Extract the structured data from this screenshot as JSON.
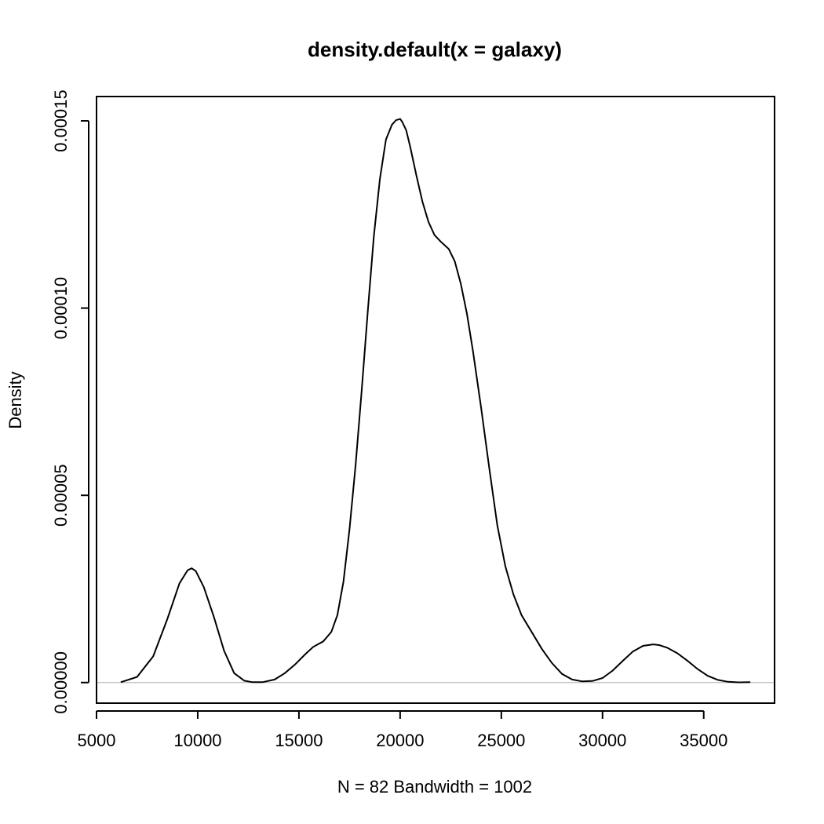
{
  "chart_data": {
    "type": "line",
    "title": "density.default(x = galaxy)",
    "xlabel": "N = 82   Bandwidth = 1002",
    "ylabel": "Density",
    "xlim": [
      5000,
      38500
    ],
    "ylim": [
      -5.5e-06,
      0.0001565
    ],
    "x_ticks": [
      5000,
      10000,
      15000,
      20000,
      25000,
      30000,
      35000
    ],
    "x_tick_labels": [
      "5000",
      "10000",
      "15000",
      "20000",
      "25000",
      "30000",
      "35000"
    ],
    "y_ticks": [
      0,
      5e-05,
      0.0001,
      0.00015
    ],
    "y_tick_labels": [
      "0.00000",
      "0.00005",
      "0.00010",
      "0.00015"
    ],
    "baseline": 0,
    "grid": false,
    "legend": "none",
    "series": [
      {
        "x": [
          6200,
          7000,
          7800,
          8500,
          9100,
          9500,
          9700,
          9900,
          10300,
          10800,
          11300,
          11800,
          12300,
          12700,
          13200,
          13800,
          14300,
          14800,
          15300,
          15700,
          16200,
          16600,
          16900,
          17200,
          17500,
          17800,
          18100,
          18400,
          18700,
          19000,
          19300,
          19600,
          19800,
          20000,
          20100,
          20300,
          20500,
          20800,
          21100,
          21400,
          21700,
          22000,
          22400,
          22700,
          23000,
          23300,
          23600,
          24000,
          24400,
          24800,
          25200,
          25600,
          26000,
          26500,
          27000,
          27500,
          28000,
          28500,
          29000,
          29500,
          30000,
          30500,
          31000,
          31500,
          32000,
          32500,
          32800,
          33200,
          33700,
          34200,
          34700,
          35200,
          35700,
          36200,
          36700,
          37300
        ],
        "y": [
          1e-07,
          1.5e-06,
          7e-06,
          1.7e-05,
          2.65e-05,
          3e-05,
          3.05e-05,
          2.98e-05,
          2.55e-05,
          1.75e-05,
          8.5e-06,
          2.5e-06,
          5e-07,
          1e-07,
          1e-07,
          8e-07,
          2.5e-06,
          4.8e-06,
          7.5e-06,
          9.5e-06,
          1.1e-05,
          1.35e-05,
          1.8e-05,
          2.7e-05,
          4.1e-05,
          5.8e-05,
          7.8e-05,
          9.9e-05,
          0.000119,
          0.0001345,
          0.000145,
          0.000149,
          0.0001502,
          0.0001505,
          0.0001498,
          0.0001475,
          0.000143,
          0.0001355,
          0.0001285,
          0.000123,
          0.0001195,
          0.0001178,
          0.0001158,
          0.0001125,
          0.0001065,
          9.85e-05,
          8.85e-05,
          7.35e-05,
          5.75e-05,
          4.2e-05,
          3.1e-05,
          2.35e-05,
          1.8e-05,
          1.35e-05,
          9e-06,
          5.2e-06,
          2.3e-06,
          8e-07,
          3e-07,
          4e-07,
          1.2e-06,
          3.2e-06,
          5.8e-06,
          8.3e-06,
          9.8e-06,
          1.02e-05,
          1e-05,
          9.3e-06,
          7.8e-06,
          5.8e-06,
          3.6e-06,
          1.8e-06,
          7e-07,
          2e-07,
          5e-08,
          1e-07
        ]
      }
    ]
  }
}
